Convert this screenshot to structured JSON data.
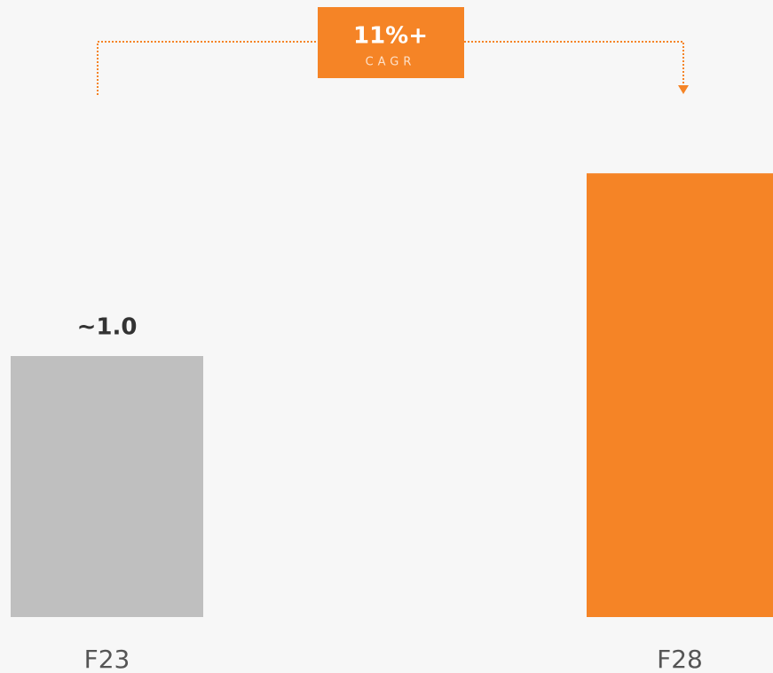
{
  "chart_data": {
    "type": "bar",
    "categories": [
      "F23",
      "F28"
    ],
    "values": [
      1.0,
      1.7
    ],
    "value_labels": [
      "~1.0",
      null
    ],
    "colors": [
      "#bfbfbf",
      "#f58426"
    ],
    "annotation": {
      "text": "11%+",
      "subtext": "CAGR",
      "color": "#f58426"
    }
  }
}
